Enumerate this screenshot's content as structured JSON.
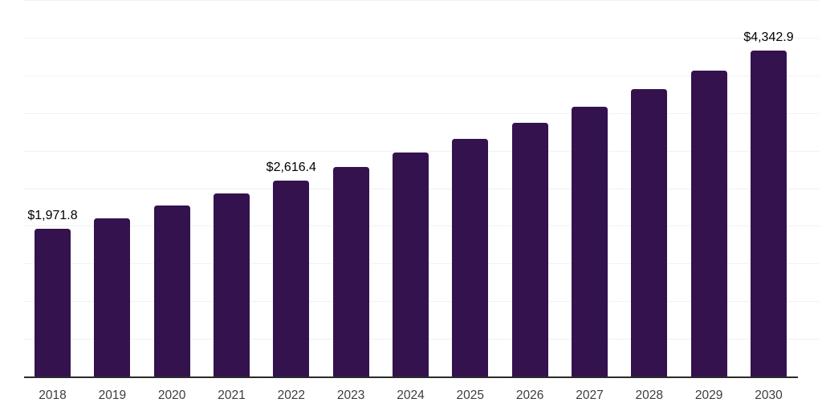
{
  "chart_data": {
    "type": "bar",
    "title": "",
    "xlabel": "",
    "ylabel": "",
    "categories": [
      "2018",
      "2019",
      "2020",
      "2021",
      "2022",
      "2023",
      "2024",
      "2025",
      "2026",
      "2027",
      "2028",
      "2029",
      "2030"
    ],
    "values": [
      1971.8,
      2115.0,
      2280.0,
      2440.0,
      2616.4,
      2790.0,
      2985.0,
      3165.0,
      3375.0,
      3590.0,
      3830.0,
      4070.0,
      4342.9
    ],
    "bar_labels": [
      "$1,971.8",
      "",
      "",
      "",
      "$2,616.4",
      "",
      "",
      "",
      "",
      "",
      "",
      "",
      "$4,342.9"
    ],
    "ylim": [
      0,
      5000
    ],
    "gridline_step": 500,
    "grid": true,
    "legend": false,
    "y_axis_tick_labels_visible": false,
    "colors": {
      "bar": "#33124e",
      "gridline": "#f1f1f1",
      "axis_line": "#2b2b2b",
      "tick_label": "#3d3d3d",
      "data_label": "#000000",
      "background": "#ffffff"
    }
  }
}
